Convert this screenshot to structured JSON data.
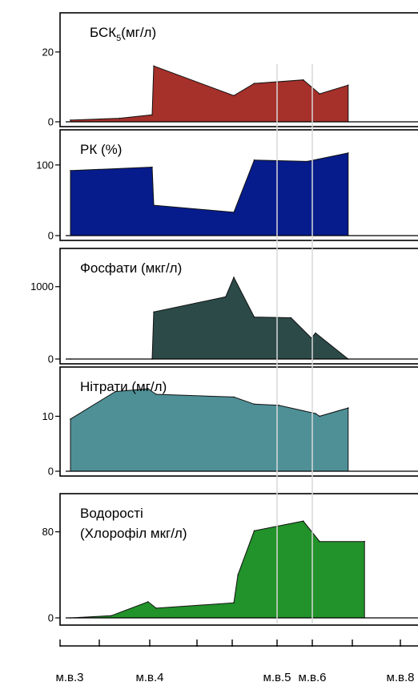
{
  "chart_data": {
    "type": "area",
    "x_labels": [
      "м.в.3",
      "м.в.4",
      "м.в.5",
      "м.в.6",
      "м.в.8"
    ],
    "panels": [
      {
        "title": "БСК",
        "title_sub": "5",
        "title_unit": "(мг/л)",
        "color": "#a6302a",
        "yticks": [
          0,
          20
        ],
        "ylim": [
          0,
          28
        ],
        "points": [
          [
            0,
            0.5
          ],
          [
            0.6,
            1
          ],
          [
            1.0,
            2
          ],
          [
            1.02,
            16
          ],
          [
            2.0,
            7.5
          ],
          [
            2.25,
            11
          ],
          [
            2.85,
            12
          ],
          [
            3.05,
            8
          ],
          [
            3.4,
            10.5
          ]
        ]
      },
      {
        "title": "РК (%)",
        "color": "#061c8c",
        "yticks": [
          0,
          100
        ],
        "ylim": [
          0,
          135
        ],
        "points": [
          [
            0,
            92
          ],
          [
            1.0,
            97
          ],
          [
            1.02,
            43
          ],
          [
            2.0,
            33
          ],
          [
            2.25,
            107
          ],
          [
            2.9,
            105
          ],
          [
            3.4,
            117
          ]
        ]
      },
      {
        "title": "Фосфати (мкг/л)",
        "color": "#2c4a48",
        "yticks": [
          0,
          1000
        ],
        "ylim": [
          0,
          1440
        ],
        "points": [
          [
            0,
            0
          ],
          [
            1.0,
            0
          ],
          [
            1.02,
            650
          ],
          [
            1.9,
            860
          ],
          [
            2.0,
            1130
          ],
          [
            2.25,
            580
          ],
          [
            2.7,
            570
          ],
          [
            2.95,
            290
          ],
          [
            3.0,
            360
          ],
          [
            3.4,
            0
          ]
        ]
      },
      {
        "title": "Нітрати (мг/л)",
        "color": "#4f9097",
        "yticks": [
          0,
          10
        ],
        "ylim": [
          0,
          17.5
        ],
        "points": [
          [
            0,
            9.5
          ],
          [
            0.55,
            14.5
          ],
          [
            0.95,
            15
          ],
          [
            1.05,
            14
          ],
          [
            2.0,
            13.5
          ],
          [
            2.25,
            12.2
          ],
          [
            2.55,
            12
          ],
          [
            3.0,
            10.5
          ],
          [
            3.05,
            10
          ],
          [
            3.4,
            11.5
          ]
        ]
      },
      {
        "title": "Водорості",
        "title_line2": "(Хлорофіл мкг/л)",
        "color": "#22922a",
        "yticks": [
          0,
          80
        ],
        "ylim": [
          0,
          111
        ],
        "points": [
          [
            0,
            0
          ],
          [
            0.5,
            2
          ],
          [
            0.95,
            15
          ],
          [
            1.05,
            9
          ],
          [
            2.0,
            14
          ],
          [
            2.05,
            40
          ],
          [
            2.25,
            81
          ],
          [
            2.85,
            90
          ],
          [
            3.05,
            71
          ],
          [
            3.6,
            71
          ]
        ]
      }
    ]
  }
}
